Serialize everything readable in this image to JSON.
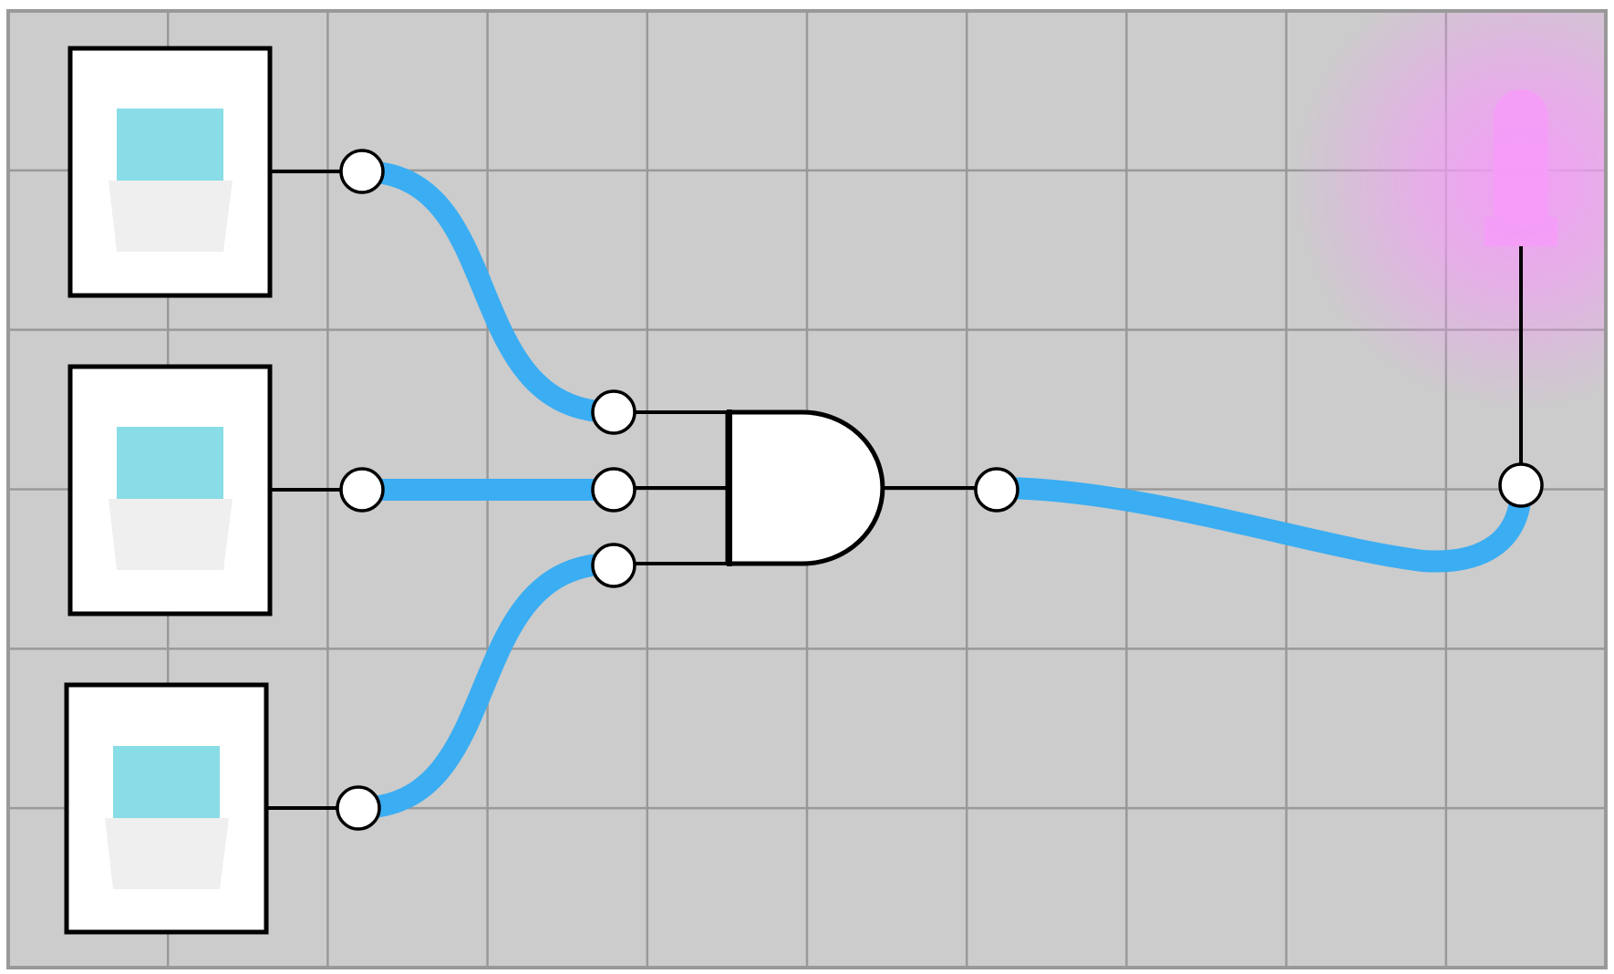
{
  "board": {
    "background_color": "#cccccc",
    "grid_color": "#999999",
    "grid_columns": 10,
    "grid_rows": 6
  },
  "components": {
    "switches": [
      {
        "name": "switch-1",
        "state": "on",
        "lever_color": "#88dde6",
        "base_color": "#efefef"
      },
      {
        "name": "switch-2",
        "state": "on",
        "lever_color": "#88dde6",
        "base_color": "#efefef"
      },
      {
        "name": "switch-3",
        "state": "on",
        "lever_color": "#88dde6",
        "base_color": "#efefef"
      }
    ],
    "gate": {
      "type": "AND",
      "inputs": 3,
      "fill_color": "#ffffff",
      "stroke_color": "#000000"
    },
    "led": {
      "state": "lit",
      "color": "#f59cf8",
      "glow_color": "#f59cf8"
    }
  },
  "wires": {
    "active_color": "#3badf2",
    "connections": [
      {
        "from": "switch-1",
        "to": "gate-input-1",
        "active": true
      },
      {
        "from": "switch-2",
        "to": "gate-input-2",
        "active": true
      },
      {
        "from": "switch-3",
        "to": "gate-input-3",
        "active": true
      },
      {
        "from": "gate-output",
        "to": "led",
        "active": true
      }
    ]
  }
}
